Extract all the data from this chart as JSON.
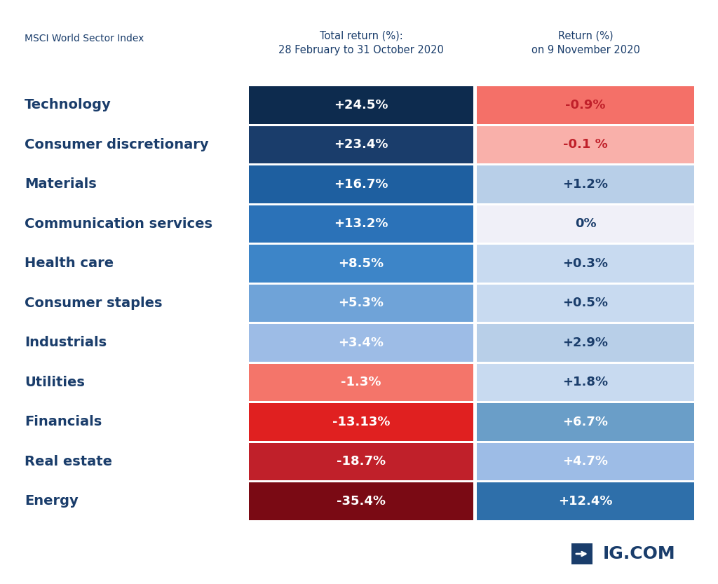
{
  "title_left": "MSCI World Sector Index",
  "col1_header_line1": "Total return (%):",
  "col1_header_line2": "28 February to 31 October 2020",
  "col2_header_line1": "Return (%)",
  "col2_header_line2": "on 9 November 2020",
  "sectors": [
    "Technology",
    "Consumer discretionary",
    "Materials",
    "Communication services",
    "Health care",
    "Consumer staples",
    "Industrials",
    "Utilities",
    "Financials",
    "Real estate",
    "Energy"
  ],
  "col1_values": [
    "+24.5%",
    "+23.4%",
    "+16.7%",
    "+13.2%",
    "+8.5%",
    "+5.3%",
    "+3.4%",
    "-1.3%",
    "-13.13%",
    "-18.7%",
    "-35.4%"
  ],
  "col2_values": [
    "-0.9%",
    "-0.1 %",
    "+1.2%",
    "0%",
    "+0.3%",
    "+0.5%",
    "+2.9%",
    "+1.8%",
    "+6.7%",
    "+4.7%",
    "+12.4%"
  ],
  "col1_colors": [
    "#0d2b4e",
    "#1a3d6b",
    "#1e5fa0",
    "#2b72b8",
    "#3d85c8",
    "#6fa3d8",
    "#9dbce6",
    "#f4756a",
    "#e02020",
    "#c0202a",
    "#7a0a14"
  ],
  "col2_colors": [
    "#f47068",
    "#f9b0aa",
    "#b8cfe8",
    "#f0f0f8",
    "#c8daf0",
    "#c8daf0",
    "#b8cfe8",
    "#c8daf0",
    "#6a9ec8",
    "#9dbce6",
    "#2e6faa"
  ],
  "col1_text_colors": [
    "#ffffff",
    "#ffffff",
    "#ffffff",
    "#ffffff",
    "#ffffff",
    "#ffffff",
    "#ffffff",
    "#ffffff",
    "#ffffff",
    "#ffffff",
    "#ffffff"
  ],
  "col2_text_colors": [
    "#c0202a",
    "#c0202a",
    "#1a3d6b",
    "#1a3d6b",
    "#1a3d6b",
    "#1a3d6b",
    "#1a3d6b",
    "#1a3d6b",
    "#ffffff",
    "#ffffff",
    "#ffffff"
  ],
  "background_color": "#ffffff",
  "sector_label_color": "#1a3d6b",
  "header_color": "#1a3d6b",
  "ig_logo_text": "IG.COM",
  "fig_width": 10.24,
  "fig_height": 8.33,
  "dpi": 100
}
